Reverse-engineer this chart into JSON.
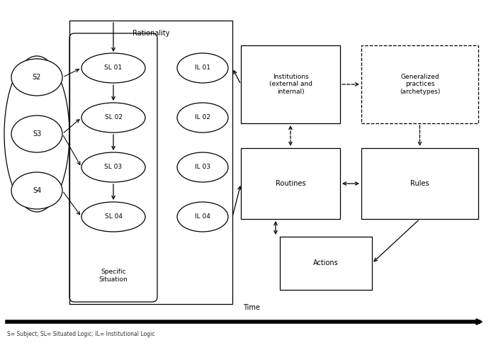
{
  "background_color": "#ffffff",
  "subjects": [
    "S2",
    "S3",
    "S4"
  ],
  "sl_labels": [
    "SL 01",
    "SL 02",
    "SL 03",
    "SL 04"
  ],
  "il_labels": [
    "IL 01",
    "IL 02",
    "IL 03",
    "IL 04"
  ],
  "rationality_label": "Rationality",
  "specific_situation_label": "Specific\nSituation",
  "institutions_label": "Institutions\n(external and\ninternal)",
  "generalized_label": "Generalized\npractices\n(archetypes)",
  "routines_label": "Routines",
  "rules_label": "Rules",
  "actions_label": "Actions",
  "time_label": "Time",
  "source_label": "S= Subject; SL= Situated Logic; IL= Institutional Logic"
}
